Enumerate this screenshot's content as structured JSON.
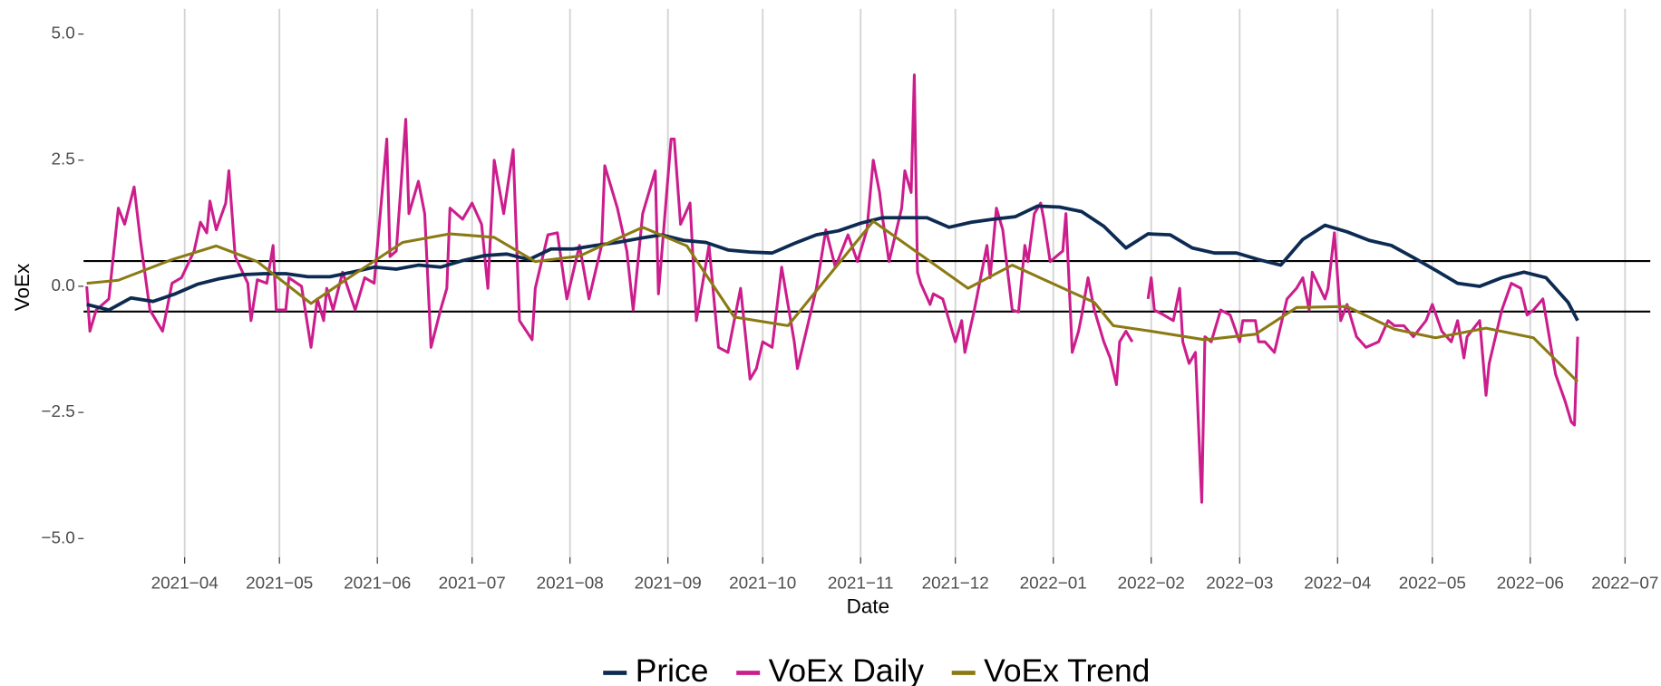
{
  "chart_data": {
    "type": "line",
    "x_label": "Date",
    "y_label": "VoEx",
    "xlim": [
      -1,
      495
    ],
    "ylim": [
      -5.2,
      5.5
    ],
    "xticks": [
      {
        "value": 31,
        "label": "2021−04"
      },
      {
        "value": 61,
        "label": "2021−05"
      },
      {
        "value": 92,
        "label": "2021−06"
      },
      {
        "value": 122,
        "label": "2021−07"
      },
      {
        "value": 153,
        "label": "2021−08"
      },
      {
        "value": 184,
        "label": "2021−09"
      },
      {
        "value": 214,
        "label": "2021−10"
      },
      {
        "value": 245,
        "label": "2021−11"
      },
      {
        "value": 275,
        "label": "2021−12"
      },
      {
        "value": 306,
        "label": "2022−01"
      },
      {
        "value": 337,
        "label": "2022−02"
      },
      {
        "value": 365,
        "label": "2022−03"
      },
      {
        "value": 396,
        "label": "2022−04"
      },
      {
        "value": 426,
        "label": "2022−05"
      },
      {
        "value": 457,
        "label": "2022−06"
      },
      {
        "value": 487,
        "label": "2022−07"
      }
    ],
    "yticks": [
      {
        "value": -5,
        "label": "−5.0"
      },
      {
        "value": -2.5,
        "label": "−2.5"
      },
      {
        "value": 0,
        "label": "0.0"
      },
      {
        "value": 2.5,
        "label": "2.5"
      },
      {
        "value": 5,
        "label": "5.0"
      }
    ],
    "hlines": [
      -0.5,
      0.5
    ],
    "x_grid": true,
    "legend": "bottom",
    "series": [
      {
        "name": "Price",
        "color": "#0d2b52",
        "x": [
          0,
          7,
          14,
          21,
          28,
          35,
          42,
          49,
          56,
          63,
          70,
          77,
          84,
          91,
          98,
          105,
          112,
          119,
          126,
          133,
          140,
          147,
          154,
          161,
          168,
          175,
          182,
          189,
          196,
          203,
          210,
          217,
          224,
          231,
          238,
          245,
          252,
          259,
          266,
          273,
          280,
          287,
          294,
          301,
          308,
          315,
          322,
          329,
          336,
          343,
          350,
          357,
          364,
          371,
          378,
          385,
          392,
          399,
          406,
          413,
          420,
          427,
          434,
          441,
          448,
          455,
          462,
          469,
          472
        ],
        "values": [
          -0.36,
          -0.47,
          -0.23,
          -0.3,
          -0.15,
          0.04,
          0.15,
          0.23,
          0.25,
          0.25,
          0.19,
          0.19,
          0.28,
          0.38,
          0.34,
          0.42,
          0.38,
          0.51,
          0.61,
          0.64,
          0.53,
          0.74,
          0.74,
          0.81,
          0.87,
          0.95,
          1.02,
          0.91,
          0.87,
          0.72,
          0.68,
          0.66,
          0.85,
          1.02,
          1.1,
          1.25,
          1.36,
          1.36,
          1.36,
          1.17,
          1.27,
          1.33,
          1.38,
          1.59,
          1.57,
          1.48,
          1.19,
          0.76,
          1.04,
          1.02,
          0.76,
          0.66,
          0.66,
          0.53,
          0.42,
          0.93,
          1.21,
          1.08,
          0.91,
          0.81,
          0.57,
          0.32,
          0.06,
          0,
          0.17,
          0.28,
          0.17,
          -0.32,
          -0.68
        ]
      },
      {
        "name": "VoEx Daily",
        "color": "#cc1d8c",
        "x": [
          0,
          1,
          3,
          7,
          10,
          12,
          15,
          17,
          20,
          24,
          27,
          30,
          34,
          36,
          38,
          39,
          41,
          44,
          45,
          47,
          51,
          52,
          54,
          57,
          59,
          60,
          63,
          64,
          68,
          71,
          73,
          75,
          76,
          78,
          81,
          85,
          88,
          91,
          95,
          96,
          98,
          101,
          102,
          105,
          107,
          109,
          112,
          114,
          115,
          119,
          122,
          125,
          127,
          129,
          132,
          135,
          137,
          141,
          142,
          146,
          149,
          151,
          152,
          156,
          159,
          163,
          164,
          168,
          171,
          173,
          176,
          180,
          181,
          185,
          186,
          188,
          191,
          193,
          197,
          200,
          203,
          207,
          210,
          212,
          214,
          217,
          220,
          224,
          225,
          227,
          231,
          234,
          237,
          241,
          244,
          247,
          249,
          251,
          252,
          254,
          258,
          259,
          261,
          262,
          263,
          264,
          267,
          268,
          271,
          275,
          277,
          278,
          281,
          285,
          286,
          288,
          290,
          293,
          295,
          297,
          298,
          300,
          302,
          303,
          305,
          309,
          310,
          312,
          314,
          315,
          317,
          319,
          322,
          324,
          326,
          327,
          329,
          331,
          333,
          336,
          337,
          338,
          341,
          344,
          346,
          347,
          349,
          351,
          353,
          354,
          356,
          359,
          362,
          365,
          366,
          370,
          371,
          373,
          376,
          380,
          383,
          385,
          387,
          388,
          392,
          393,
          395,
          397,
          399,
          402,
          405,
          409,
          412,
          414,
          417,
          420,
          424,
          426,
          429,
          432,
          434,
          436,
          437,
          441,
          443,
          444,
          448,
          451,
          454,
          456,
          458,
          461,
          465,
          468,
          470,
          471,
          472
        ],
        "values": [
          0,
          -0.89,
          -0.47,
          -0.25,
          1.55,
          1.23,
          1.97,
          0.91,
          -0.47,
          -0.89,
          0.06,
          0.17,
          0.7,
          1.27,
          1.06,
          1.69,
          1.12,
          1.65,
          2.29,
          0.59,
          0.06,
          -0.68,
          0.13,
          0.06,
          0.81,
          -0.47,
          -0.47,
          0.17,
          0,
          -1.21,
          -0.25,
          -0.68,
          -0.04,
          -0.47,
          0.28,
          -0.47,
          0.17,
          0.06,
          2.92,
          0.59,
          0.7,
          3.31,
          1.44,
          2.08,
          1.44,
          -1.21,
          -0.47,
          -0.04,
          1.55,
          1.33,
          1.65,
          1.23,
          -0.04,
          2.5,
          1.44,
          2.71,
          -0.68,
          -1.06,
          -0.04,
          1.02,
          1.06,
          0.17,
          -0.25,
          0.81,
          -0.25,
          0.81,
          2.39,
          1.55,
          0.7,
          -0.47,
          1.44,
          2.29,
          -0.15,
          2.92,
          2.92,
          1.23,
          1.65,
          -0.68,
          0.81,
          -1.21,
          -1.31,
          -0.04,
          -1.84,
          -1.63,
          -1.1,
          -1.21,
          0.38,
          -1.1,
          -1.63,
          -1.1,
          -0.04,
          1.12,
          0.38,
          1.02,
          0.49,
          1.12,
          2.5,
          1.86,
          1.33,
          0.49,
          1.55,
          2.29,
          1.86,
          4.19,
          0.28,
          0.06,
          -0.36,
          -0.15,
          -0.25,
          -1.1,
          -0.68,
          -1.31,
          -0.47,
          0.81,
          0.17,
          1.55,
          1.12,
          -0.47,
          -0.51,
          0.81,
          0.49,
          1.44,
          1.65,
          1.33,
          0.49,
          0.7,
          1.44,
          -1.31,
          -0.89,
          -0.57,
          0.17,
          -0.47,
          -1.1,
          -1.42,
          -1.95,
          -1.1,
          -0.89,
          -1.1,
          null,
          -0.25,
          0.17,
          -0.47,
          -0.57,
          -0.68,
          -0.04,
          -1.1,
          -1.53,
          -1.31,
          -4.28,
          -1,
          -1.1,
          -0.47,
          -0.57,
          -1.1,
          -0.68,
          -0.68,
          -1.1,
          -1.1,
          -1.31,
          -0.25,
          -0.04,
          0.17,
          -0.47,
          0.28,
          -0.25,
          -0.04,
          1.06,
          -0.68,
          -0.36,
          -1,
          -1.21,
          -1.1,
          -0.68,
          -0.78,
          -0.78,
          -1,
          -0.68,
          -0.36,
          -0.89,
          -1.1,
          -0.68,
          -1.42,
          -1,
          -0.68,
          -2.16,
          -1.53,
          -0.47,
          0.06,
          -0.04,
          -0.57,
          -0.47,
          -0.25,
          -1.74,
          -2.27,
          -2.69,
          -2.75,
          -1
        ]
      },
      {
        "name": "VoEx Trend",
        "color": "#8b7a14",
        "x": [
          0,
          10,
          27,
          41,
          54,
          71,
          83,
          100,
          115,
          129,
          142,
          156,
          176,
          190,
          205,
          222,
          249,
          279,
          293,
          319,
          325,
          337,
          354,
          370,
          383,
          399,
          414,
          427,
          443,
          458,
          472
        ],
        "values": [
          0.06,
          0.12,
          0.53,
          0.8,
          0.49,
          -0.34,
          0.17,
          0.87,
          1.04,
          0.97,
          0.49,
          0.6,
          1.17,
          0.8,
          -0.61,
          -0.78,
          1.29,
          -0.04,
          0.42,
          -0.32,
          -0.78,
          -0.89,
          -1.06,
          -0.95,
          -0.42,
          -0.4,
          -0.85,
          -1.02,
          -0.83,
          -1.02,
          -1.89
        ]
      }
    ]
  }
}
